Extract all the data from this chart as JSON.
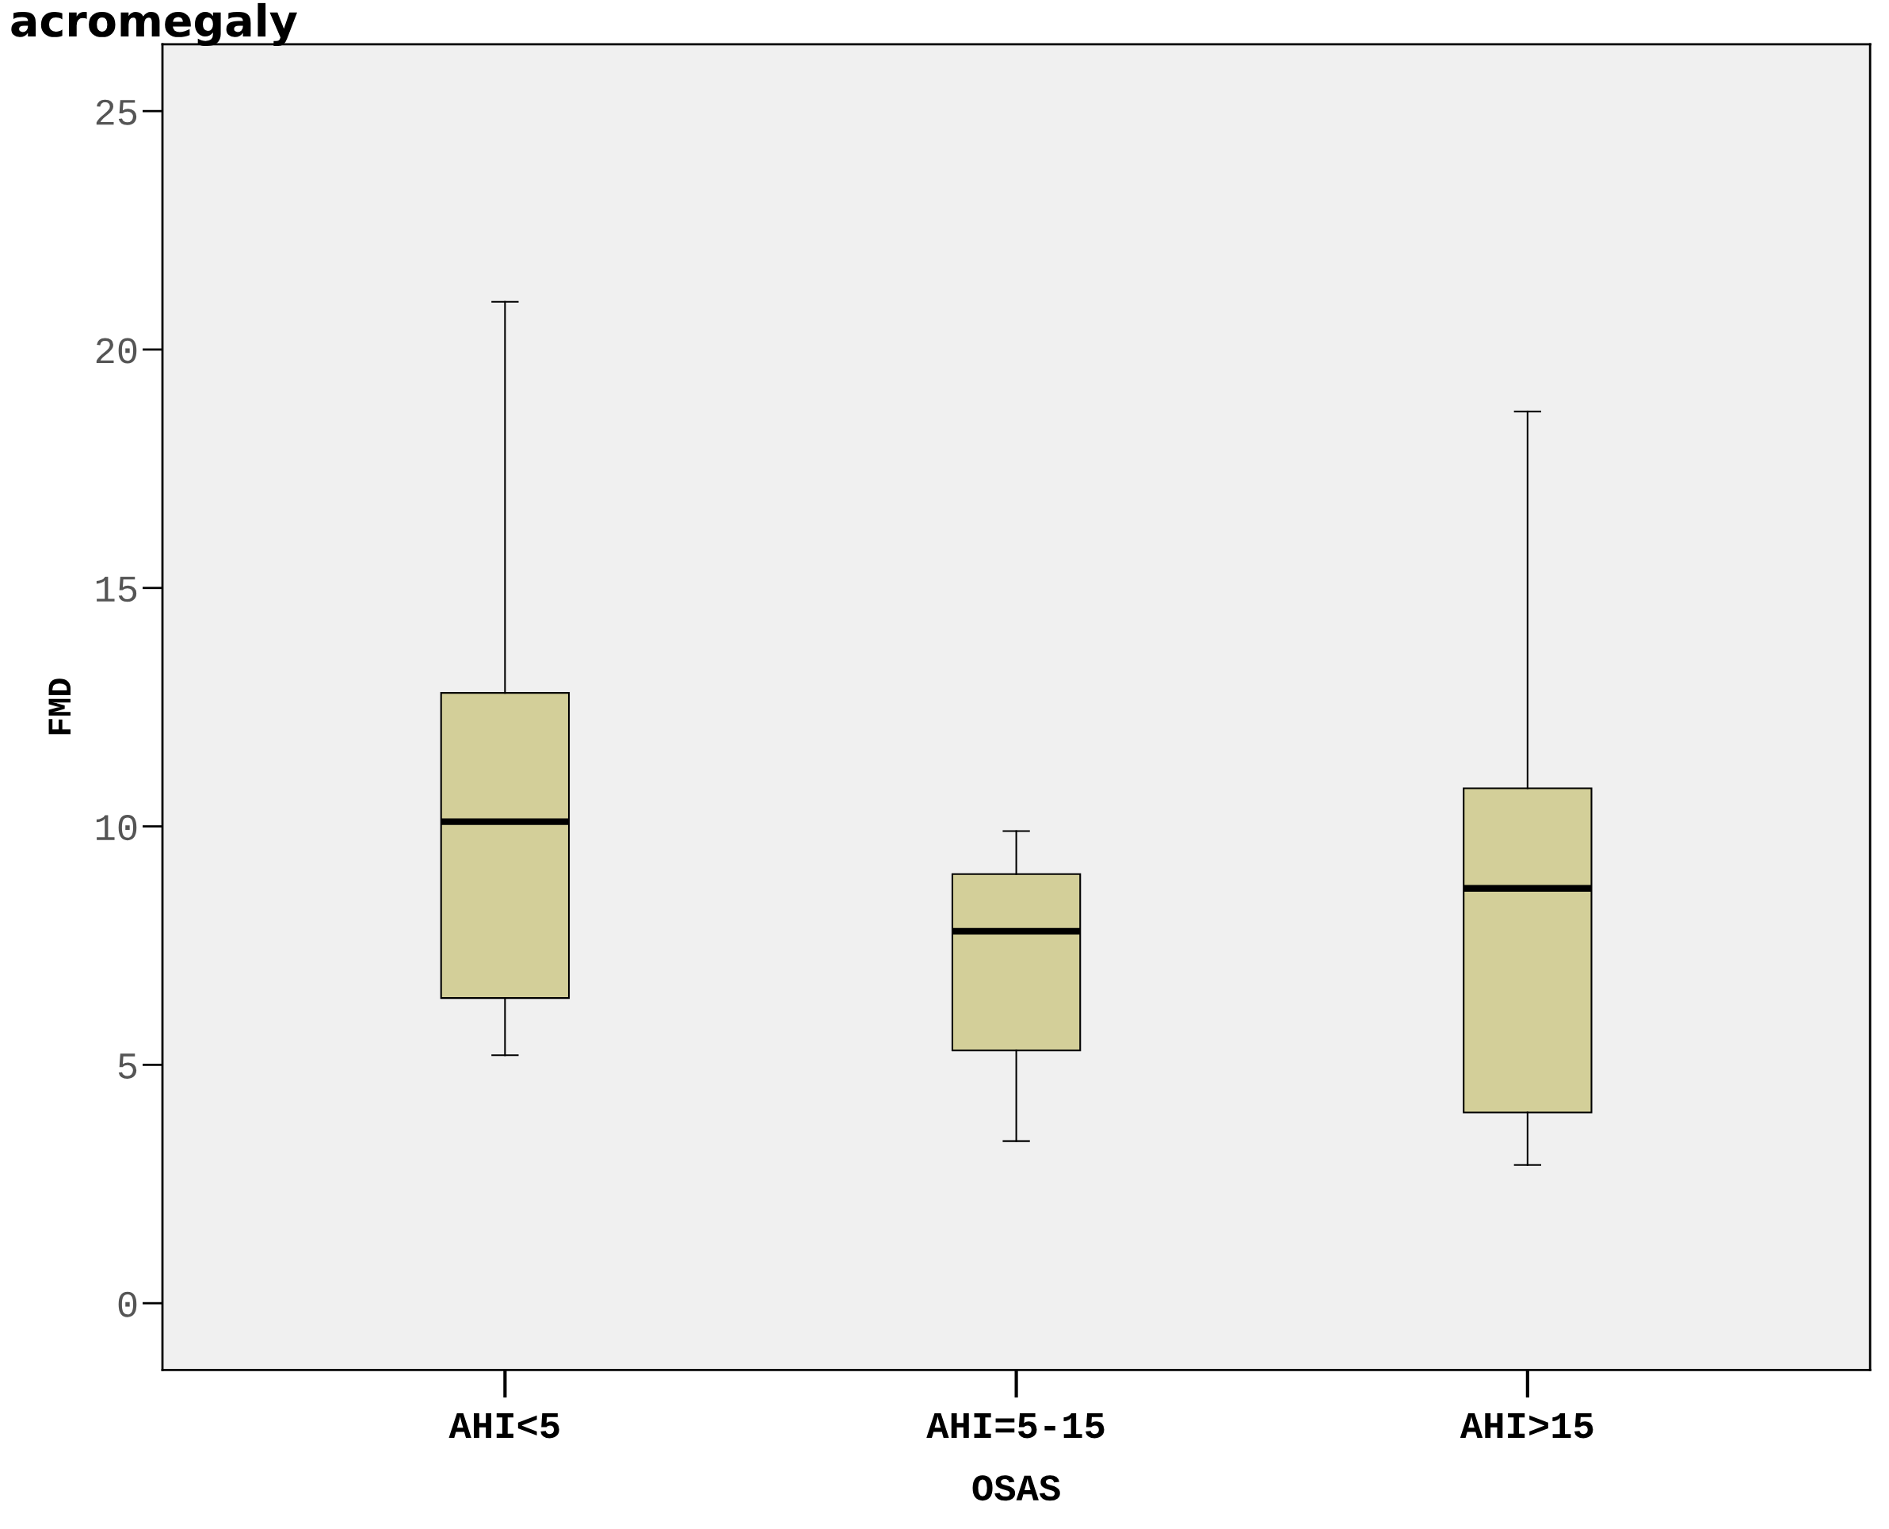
{
  "chart_data": {
    "type": "box",
    "title": "acromegaly",
    "xlabel": "OSAS",
    "ylabel": "FMD",
    "categories": [
      "AHI<5",
      "AHI=5-15",
      "AHI>15"
    ],
    "boxes": [
      {
        "low": 5.2,
        "q1": 6.4,
        "median": 10.1,
        "q3": 12.8,
        "high": 21.0
      },
      {
        "low": 3.4,
        "q1": 5.3,
        "median": 7.8,
        "q3": 9.0,
        "high": 9.9
      },
      {
        "low": 2.9,
        "q1": 4.0,
        "median": 8.7,
        "q3": 10.8,
        "high": 18.7
      }
    ],
    "color": "#d3cf99",
    "ylim": [
      -1.4,
      26.4
    ],
    "yticks": [
      0,
      5,
      10,
      15,
      20,
      25
    ],
    "grid": false
  }
}
